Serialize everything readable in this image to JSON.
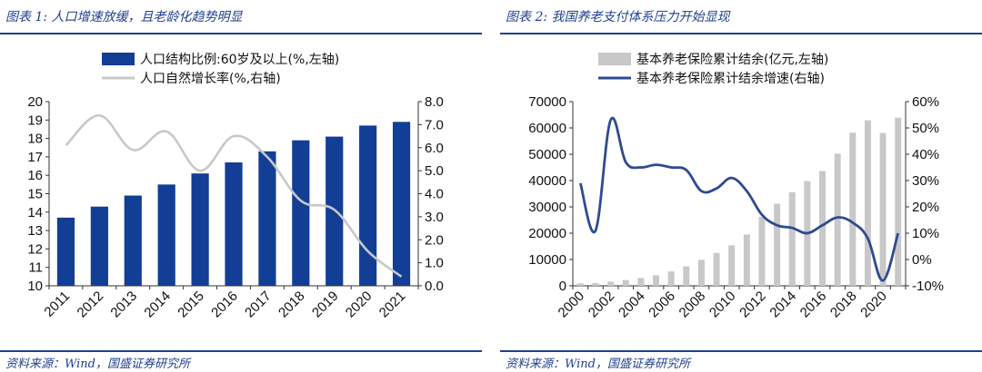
{
  "left": {
    "title": "图表 1:  人口增速放缓，且老龄化趋势明显",
    "source": "资料来源：Wind，国盛证券研究所"
  },
  "right": {
    "title": "图表 2:  我国养老支付体系压力开始显现",
    "source": "资料来源：Wind，国盛证券研究所"
  },
  "chart_data": [
    {
      "type": "bar+line",
      "categories": [
        "2011",
        "2012",
        "2013",
        "2014",
        "2015",
        "2016",
        "2017",
        "2018",
        "2019",
        "2020",
        "2021"
      ],
      "series": [
        {
          "name": "人口结构比例:60岁及以上(%,左轴)",
          "kind": "bar",
          "axis": "left",
          "color": "#123e96",
          "values": [
            13.7,
            14.3,
            14.9,
            15.5,
            16.1,
            16.7,
            17.3,
            17.9,
            18.1,
            18.7,
            18.9
          ]
        },
        {
          "name": "人口自然增长率(%,右轴)",
          "kind": "line",
          "axis": "right",
          "color": "#c8c8c8",
          "values": [
            6.1,
            7.4,
            5.9,
            6.7,
            5.0,
            6.5,
            5.6,
            3.7,
            3.3,
            1.5,
            0.4
          ]
        }
      ],
      "y_left": {
        "min": 10,
        "max": 20,
        "ticks": [
          "10",
          "11",
          "12",
          "13",
          "14",
          "15",
          "16",
          "17",
          "18",
          "19",
          "20"
        ]
      },
      "y_right": {
        "min": 0,
        "max": 8,
        "ticks": [
          "0.0",
          "1.0",
          "2.0",
          "3.0",
          "4.0",
          "5.0",
          "6.0",
          "7.0",
          "8.0"
        ]
      },
      "legend_position": "top-center",
      "grid": false
    },
    {
      "type": "bar+line",
      "categories": [
        "2000",
        "2001",
        "2002",
        "2003",
        "2004",
        "2005",
        "2006",
        "2007",
        "2008",
        "2009",
        "2010",
        "2011",
        "2012",
        "2013",
        "2014",
        "2015",
        "2016",
        "2017",
        "2018",
        "2019",
        "2020",
        "2021"
      ],
      "x_tick_labels": [
        "2000",
        "2002",
        "2004",
        "2006",
        "2008",
        "2010",
        "2012",
        "2014",
        "2016",
        "2018",
        "2020"
      ],
      "series": [
        {
          "name": "基本养老保险累计结余(亿元,左轴)",
          "kind": "bar",
          "axis": "left",
          "color": "#c8c8c8",
          "values": [
            950,
            1050,
            1600,
            2200,
            2950,
            4000,
            5450,
            7400,
            9900,
            12500,
            15400,
            19500,
            26200,
            31200,
            35600,
            39800,
            43600,
            50200,
            58200,
            62900,
            58100,
            63900
          ]
        },
        {
          "name": "基本养老保险累计结余增速(右轴)",
          "kind": "line",
          "axis": "right",
          "color": "#2f4a91",
          "values": [
            29,
            11,
            53,
            37,
            35,
            36,
            35,
            34,
            26,
            27,
            31,
            26,
            17,
            13,
            12,
            10,
            13,
            16,
            14,
            8,
            -8,
            10
          ]
        }
      ],
      "y_left": {
        "min": 0,
        "max": 70000,
        "ticks": [
          "0",
          "10000",
          "20000",
          "30000",
          "40000",
          "50000",
          "60000",
          "70000"
        ]
      },
      "y_right": {
        "min": -10,
        "max": 60,
        "ticks": [
          "-10%",
          "0%",
          "10%",
          "20%",
          "30%",
          "40%",
          "50%",
          "60%"
        ]
      },
      "legend_position": "top-center",
      "grid": false
    }
  ]
}
